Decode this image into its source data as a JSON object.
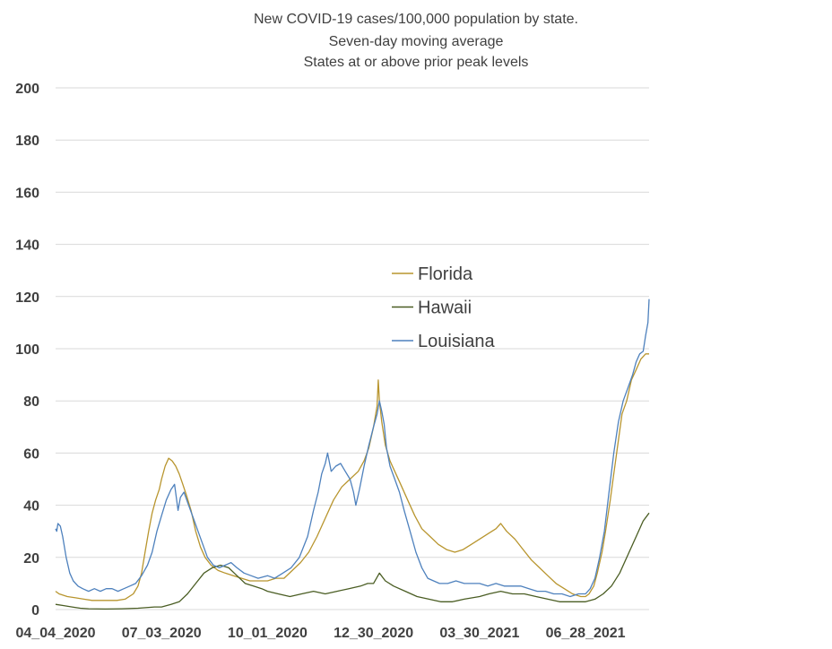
{
  "chart_data": {
    "type": "line",
    "title_lines": [
      "New COVID-19 cases/100,000 population by state.",
      "Seven-day moving average",
      "States at or above prior peak levels"
    ],
    "xlabel": "",
    "ylabel": "",
    "ylim": [
      0,
      200
    ],
    "yticks": [
      0,
      20,
      40,
      60,
      80,
      100,
      120,
      140,
      160,
      180,
      200
    ],
    "xlim": [
      "2020-04-04",
      "2021-08-21"
    ],
    "xtick_labels": [
      "04_04_2020",
      "07_03_2020",
      "10_01_2020",
      "12_30_2020",
      "03_30_2021",
      "06_28_2021"
    ],
    "xtick_dates": [
      "2020-04-04",
      "2020-07-03",
      "2020-10-01",
      "2020-12-30",
      "2021-03-30",
      "2021-06-28"
    ],
    "grid": "horizontal",
    "legend_position": "center",
    "series": [
      {
        "name": "Florida",
        "color": "#b8952e",
        "points": [
          [
            "2020-04-04",
            7
          ],
          [
            "2020-04-07",
            6
          ],
          [
            "2020-04-14",
            5
          ],
          [
            "2020-04-21",
            4.5
          ],
          [
            "2020-04-28",
            4
          ],
          [
            "2020-05-05",
            3.5
          ],
          [
            "2020-05-12",
            3.5
          ],
          [
            "2020-05-19",
            3.5
          ],
          [
            "2020-05-26",
            3.5
          ],
          [
            "2020-06-02",
            4
          ],
          [
            "2020-06-09",
            6
          ],
          [
            "2020-06-13",
            9
          ],
          [
            "2020-06-16",
            14
          ],
          [
            "2020-06-19",
            22
          ],
          [
            "2020-06-22",
            30
          ],
          [
            "2020-06-25",
            37
          ],
          [
            "2020-06-28",
            42
          ],
          [
            "2020-07-01",
            46
          ],
          [
            "2020-07-03",
            50
          ],
          [
            "2020-07-06",
            55
          ],
          [
            "2020-07-09",
            58
          ],
          [
            "2020-07-12",
            57
          ],
          [
            "2020-07-15",
            55
          ],
          [
            "2020-07-18",
            52
          ],
          [
            "2020-07-21",
            48
          ],
          [
            "2020-07-24",
            44
          ],
          [
            "2020-07-28",
            38
          ],
          [
            "2020-08-01",
            30
          ],
          [
            "2020-08-05",
            24
          ],
          [
            "2020-08-09",
            20
          ],
          [
            "2020-08-14",
            17
          ],
          [
            "2020-08-20",
            15
          ],
          [
            "2020-08-26",
            14
          ],
          [
            "2020-09-02",
            13
          ],
          [
            "2020-09-09",
            12
          ],
          [
            "2020-09-16",
            11
          ],
          [
            "2020-09-23",
            11
          ],
          [
            "2020-10-01",
            11
          ],
          [
            "2020-10-08",
            12
          ],
          [
            "2020-10-15",
            12
          ],
          [
            "2020-10-22",
            15
          ],
          [
            "2020-10-29",
            18
          ],
          [
            "2020-11-05",
            22
          ],
          [
            "2020-11-12",
            28
          ],
          [
            "2020-11-19",
            35
          ],
          [
            "2020-11-26",
            42
          ],
          [
            "2020-12-03",
            47
          ],
          [
            "2020-12-10",
            50
          ],
          [
            "2020-12-17",
            53
          ],
          [
            "2020-12-22",
            57
          ],
          [
            "2020-12-26",
            62
          ],
          [
            "2020-12-30",
            70
          ],
          [
            "2021-01-02",
            78
          ],
          [
            "2021-01-03",
            88
          ],
          [
            "2021-01-04",
            80
          ],
          [
            "2021-01-06",
            72
          ],
          [
            "2021-01-09",
            63
          ],
          [
            "2021-01-13",
            57
          ],
          [
            "2021-01-17",
            53
          ],
          [
            "2021-01-22",
            48
          ],
          [
            "2021-01-28",
            42
          ],
          [
            "2021-02-03",
            36
          ],
          [
            "2021-02-09",
            31
          ],
          [
            "2021-02-16",
            28
          ],
          [
            "2021-02-23",
            25
          ],
          [
            "2021-03-02",
            23
          ],
          [
            "2021-03-09",
            22
          ],
          [
            "2021-03-16",
            23
          ],
          [
            "2021-03-23",
            25
          ],
          [
            "2021-03-30",
            27
          ],
          [
            "2021-04-06",
            29
          ],
          [
            "2021-04-13",
            31
          ],
          [
            "2021-04-17",
            33
          ],
          [
            "2021-04-22",
            30
          ],
          [
            "2021-04-29",
            27
          ],
          [
            "2021-05-06",
            23
          ],
          [
            "2021-05-13",
            19
          ],
          [
            "2021-05-20",
            16
          ],
          [
            "2021-05-27",
            13
          ],
          [
            "2021-06-03",
            10
          ],
          [
            "2021-06-10",
            8
          ],
          [
            "2021-06-17",
            6
          ],
          [
            "2021-06-24",
            5
          ],
          [
            "2021-06-28",
            5
          ],
          [
            "2021-07-01",
            6
          ],
          [
            "2021-07-05",
            9
          ],
          [
            "2021-07-08",
            14
          ],
          [
            "2021-07-12",
            22
          ],
          [
            "2021-07-15",
            30
          ],
          [
            "2021-07-19",
            42
          ],
          [
            "2021-07-22",
            52
          ],
          [
            "2021-07-26",
            65
          ],
          [
            "2021-07-29",
            75
          ],
          [
            "2021-08-02",
            80
          ],
          [
            "2021-08-06",
            88
          ],
          [
            "2021-08-10",
            92
          ],
          [
            "2021-08-14",
            96
          ],
          [
            "2021-08-18",
            98
          ],
          [
            "2021-08-21",
            98
          ]
        ]
      },
      {
        "name": "Hawaii",
        "color": "#4a5d23",
        "points": [
          [
            "2020-04-04",
            2
          ],
          [
            "2020-04-11",
            1.5
          ],
          [
            "2020-04-18",
            1
          ],
          [
            "2020-04-25",
            0.5
          ],
          [
            "2020-05-02",
            0.3
          ],
          [
            "2020-05-16",
            0.2
          ],
          [
            "2020-05-30",
            0.3
          ],
          [
            "2020-06-13",
            0.5
          ],
          [
            "2020-06-27",
            1
          ],
          [
            "2020-07-03",
            1
          ],
          [
            "2020-07-11",
            2
          ],
          [
            "2020-07-18",
            3
          ],
          [
            "2020-07-25",
            6
          ],
          [
            "2020-08-01",
            10
          ],
          [
            "2020-08-08",
            14
          ],
          [
            "2020-08-15",
            16
          ],
          [
            "2020-08-22",
            17
          ],
          [
            "2020-08-29",
            16
          ],
          [
            "2020-09-05",
            13
          ],
          [
            "2020-09-12",
            10
          ],
          [
            "2020-09-19",
            9
          ],
          [
            "2020-09-26",
            8
          ],
          [
            "2020-10-01",
            7
          ],
          [
            "2020-10-10",
            6
          ],
          [
            "2020-10-20",
            5
          ],
          [
            "2020-10-30",
            6
          ],
          [
            "2020-11-09",
            7
          ],
          [
            "2020-11-19",
            6
          ],
          [
            "2020-11-29",
            7
          ],
          [
            "2020-12-09",
            8
          ],
          [
            "2020-12-19",
            9
          ],
          [
            "2020-12-25",
            10
          ],
          [
            "2020-12-30",
            10
          ],
          [
            "2021-01-04",
            14
          ],
          [
            "2021-01-09",
            11
          ],
          [
            "2021-01-16",
            9
          ],
          [
            "2021-01-26",
            7
          ],
          [
            "2021-02-05",
            5
          ],
          [
            "2021-02-15",
            4
          ],
          [
            "2021-02-25",
            3
          ],
          [
            "2021-03-07",
            3
          ],
          [
            "2021-03-17",
            4
          ],
          [
            "2021-03-30",
            5
          ],
          [
            "2021-04-07",
            6
          ],
          [
            "2021-04-17",
            7
          ],
          [
            "2021-04-27",
            6
          ],
          [
            "2021-05-07",
            6
          ],
          [
            "2021-05-17",
            5
          ],
          [
            "2021-05-27",
            4
          ],
          [
            "2021-06-06",
            3
          ],
          [
            "2021-06-16",
            3
          ],
          [
            "2021-06-28",
            3
          ],
          [
            "2021-07-06",
            4
          ],
          [
            "2021-07-13",
            6
          ],
          [
            "2021-07-20",
            9
          ],
          [
            "2021-07-27",
            14
          ],
          [
            "2021-08-03",
            21
          ],
          [
            "2021-08-10",
            28
          ],
          [
            "2021-08-16",
            34
          ],
          [
            "2021-08-21",
            37
          ]
        ]
      },
      {
        "name": "Louisiana",
        "color": "#4e81bd",
        "points": [
          [
            "2020-04-04",
            31
          ],
          [
            "2020-04-05",
            30
          ],
          [
            "2020-04-06",
            33
          ],
          [
            "2020-04-08",
            32
          ],
          [
            "2020-04-10",
            28
          ],
          [
            "2020-04-13",
            20
          ],
          [
            "2020-04-16",
            14
          ],
          [
            "2020-04-19",
            11
          ],
          [
            "2020-04-23",
            9
          ],
          [
            "2020-04-27",
            8
          ],
          [
            "2020-05-02",
            7
          ],
          [
            "2020-05-07",
            8
          ],
          [
            "2020-05-12",
            7
          ],
          [
            "2020-05-17",
            8
          ],
          [
            "2020-05-22",
            8
          ],
          [
            "2020-05-27",
            7
          ],
          [
            "2020-06-01",
            8
          ],
          [
            "2020-06-06",
            9
          ],
          [
            "2020-06-11",
            10
          ],
          [
            "2020-06-16",
            13
          ],
          [
            "2020-06-21",
            17
          ],
          [
            "2020-06-25",
            22
          ],
          [
            "2020-06-29",
            30
          ],
          [
            "2020-07-03",
            36
          ],
          [
            "2020-07-07",
            42
          ],
          [
            "2020-07-11",
            46
          ],
          [
            "2020-07-14",
            48
          ],
          [
            "2020-07-17",
            38
          ],
          [
            "2020-07-19",
            43
          ],
          [
            "2020-07-22",
            45
          ],
          [
            "2020-07-26",
            40
          ],
          [
            "2020-07-30",
            35
          ],
          [
            "2020-08-03",
            30
          ],
          [
            "2020-08-07",
            25
          ],
          [
            "2020-08-11",
            20
          ],
          [
            "2020-08-16",
            17
          ],
          [
            "2020-08-21",
            16
          ],
          [
            "2020-08-26",
            17
          ],
          [
            "2020-08-31",
            18
          ],
          [
            "2020-09-05",
            16
          ],
          [
            "2020-09-11",
            14
          ],
          [
            "2020-09-17",
            13
          ],
          [
            "2020-09-23",
            12
          ],
          [
            "2020-10-01",
            13
          ],
          [
            "2020-10-07",
            12
          ],
          [
            "2020-10-14",
            14
          ],
          [
            "2020-10-21",
            16
          ],
          [
            "2020-10-28",
            20
          ],
          [
            "2020-11-04",
            28
          ],
          [
            "2020-11-09",
            38
          ],
          [
            "2020-11-13",
            45
          ],
          [
            "2020-11-16",
            52
          ],
          [
            "2020-11-19",
            56
          ],
          [
            "2020-11-21",
            60
          ],
          [
            "2020-11-24",
            53
          ],
          [
            "2020-11-28",
            55
          ],
          [
            "2020-12-02",
            56
          ],
          [
            "2020-12-06",
            53
          ],
          [
            "2020-12-10",
            50
          ],
          [
            "2020-12-13",
            45
          ],
          [
            "2020-12-15",
            40
          ],
          [
            "2020-12-18",
            46
          ],
          [
            "2020-12-22",
            55
          ],
          [
            "2020-12-26",
            63
          ],
          [
            "2020-12-30",
            70
          ],
          [
            "2021-01-02",
            75
          ],
          [
            "2021-01-04",
            80
          ],
          [
            "2021-01-06",
            76
          ],
          [
            "2021-01-08",
            71
          ],
          [
            "2021-01-10",
            62
          ],
          [
            "2021-01-13",
            55
          ],
          [
            "2021-01-17",
            50
          ],
          [
            "2021-01-21",
            45
          ],
          [
            "2021-01-25",
            38
          ],
          [
            "2021-01-30",
            30
          ],
          [
            "2021-02-04",
            22
          ],
          [
            "2021-02-09",
            16
          ],
          [
            "2021-02-14",
            12
          ],
          [
            "2021-02-19",
            11
          ],
          [
            "2021-02-24",
            10
          ],
          [
            "2021-03-03",
            10
          ],
          [
            "2021-03-10",
            11
          ],
          [
            "2021-03-17",
            10
          ],
          [
            "2021-03-24",
            10
          ],
          [
            "2021-03-30",
            10
          ],
          [
            "2021-04-06",
            9
          ],
          [
            "2021-04-13",
            10
          ],
          [
            "2021-04-20",
            9
          ],
          [
            "2021-04-27",
            9
          ],
          [
            "2021-05-04",
            9
          ],
          [
            "2021-05-11",
            8
          ],
          [
            "2021-05-18",
            7
          ],
          [
            "2021-05-25",
            7
          ],
          [
            "2021-06-01",
            6
          ],
          [
            "2021-06-08",
            6
          ],
          [
            "2021-06-15",
            5
          ],
          [
            "2021-06-22",
            6
          ],
          [
            "2021-06-28",
            6
          ],
          [
            "2021-07-02",
            8
          ],
          [
            "2021-07-06",
            12
          ],
          [
            "2021-07-10",
            20
          ],
          [
            "2021-07-14",
            30
          ],
          [
            "2021-07-18",
            45
          ],
          [
            "2021-07-22",
            60
          ],
          [
            "2021-07-26",
            72
          ],
          [
            "2021-07-30",
            80
          ],
          [
            "2021-08-03",
            85
          ],
          [
            "2021-08-07",
            90
          ],
          [
            "2021-08-10",
            95
          ],
          [
            "2021-08-13",
            98
          ],
          [
            "2021-08-16",
            99
          ],
          [
            "2021-08-18",
            105
          ],
          [
            "2021-08-20",
            110
          ],
          [
            "2021-08-21",
            119
          ]
        ]
      }
    ]
  }
}
